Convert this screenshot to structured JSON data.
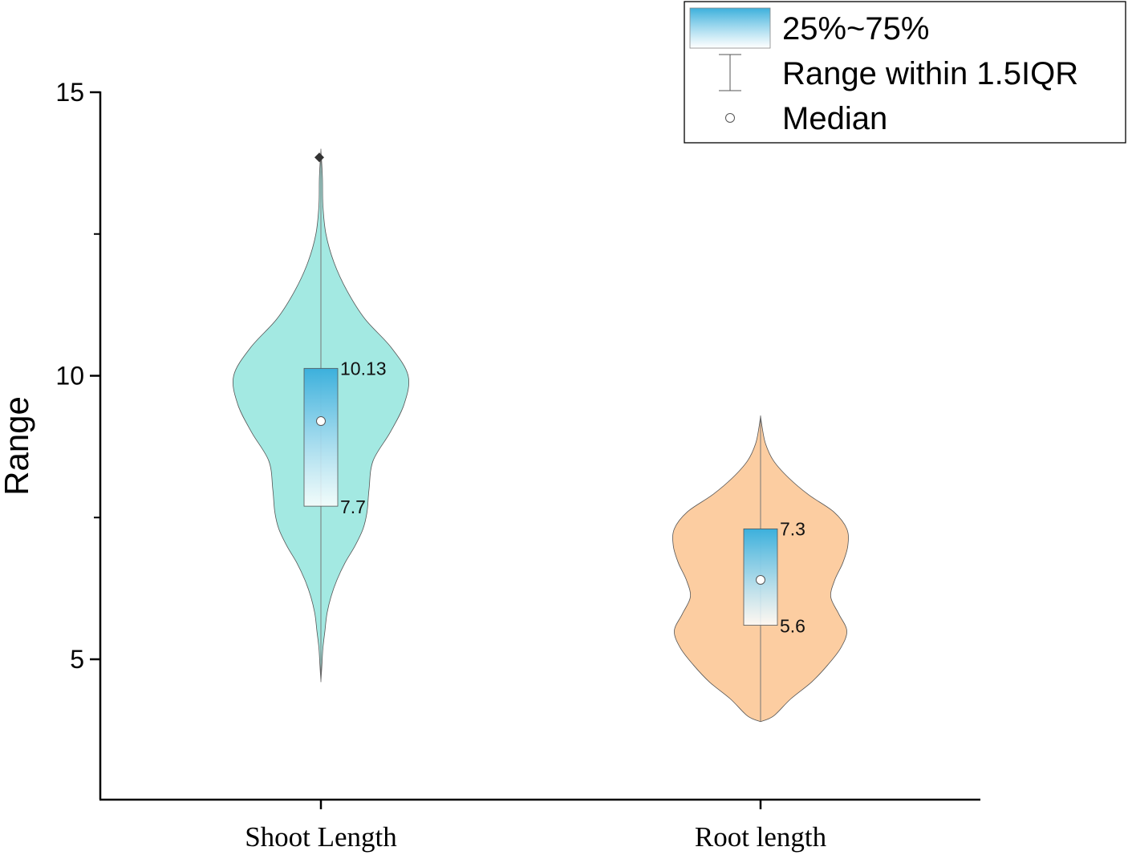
{
  "chart_data": {
    "type": "violin",
    "xlabel": "",
    "ylabel": "Range",
    "ylim": [
      2.5,
      15
    ],
    "yticks": [
      5,
      10,
      15
    ],
    "grid": false,
    "legend_position": "top-right",
    "categories": [
      "Shoot Length",
      "Root length"
    ],
    "series": [
      {
        "category": "Shoot Length",
        "color": "#a3e9e2",
        "q1": 7.7,
        "q3": 10.13,
        "q1_label": "7.7",
        "q3_label": "10.13",
        "median": 9.2,
        "whisker_low": 4.6,
        "whisker_high": 14.0,
        "outliers": [
          13.85
        ],
        "density": [
          [
            4.6,
            0.0
          ],
          [
            4.9,
            0.01
          ],
          [
            5.2,
            0.02
          ],
          [
            5.5,
            0.04
          ],
          [
            5.8,
            0.06
          ],
          [
            6.1,
            0.1
          ],
          [
            6.4,
            0.16
          ],
          [
            6.7,
            0.24
          ],
          [
            7.0,
            0.34
          ],
          [
            7.3,
            0.42
          ],
          [
            7.6,
            0.46
          ],
          [
            8.0,
            0.48
          ],
          [
            8.5,
            0.52
          ],
          [
            9.0,
            0.69
          ],
          [
            9.5,
            0.83
          ],
          [
            10.0,
            0.87
          ],
          [
            10.5,
            0.7
          ],
          [
            11.0,
            0.44
          ],
          [
            11.5,
            0.26
          ],
          [
            12.0,
            0.13
          ],
          [
            12.5,
            0.05
          ],
          [
            13.0,
            0.02
          ],
          [
            13.5,
            0.015
          ],
          [
            14.0,
            0.0
          ]
        ]
      },
      {
        "category": "Root length",
        "color": "#fccda1",
        "q1": 5.6,
        "q3": 7.3,
        "q1_label": "5.6",
        "q3_label": "7.3",
        "median": 6.4,
        "whisker_low": 3.9,
        "whisker_high": 9.3,
        "outliers": [],
        "density": [
          [
            3.9,
            0.0
          ],
          [
            4.0,
            0.13
          ],
          [
            4.3,
            0.3
          ],
          [
            4.6,
            0.51
          ],
          [
            4.9,
            0.67
          ],
          [
            5.2,
            0.8
          ],
          [
            5.5,
            0.86
          ],
          [
            5.8,
            0.78
          ],
          [
            6.1,
            0.7
          ],
          [
            6.4,
            0.74
          ],
          [
            6.7,
            0.82
          ],
          [
            7.0,
            0.87
          ],
          [
            7.3,
            0.86
          ],
          [
            7.6,
            0.73
          ],
          [
            7.9,
            0.48
          ],
          [
            8.2,
            0.28
          ],
          [
            8.5,
            0.13
          ],
          [
            8.8,
            0.05
          ],
          [
            9.1,
            0.015
          ],
          [
            9.3,
            0.0
          ]
        ]
      }
    ],
    "legend": {
      "entries": [
        {
          "label": "25%~75%",
          "symbol": "box-gradient"
        },
        {
          "label": "Range within 1.5IQR",
          "symbol": "whisker"
        },
        {
          "label": "Median",
          "symbol": "circle"
        }
      ]
    },
    "box_gradient": {
      "top": "#3cb0dc",
      "bottom": "#ffffff"
    }
  }
}
